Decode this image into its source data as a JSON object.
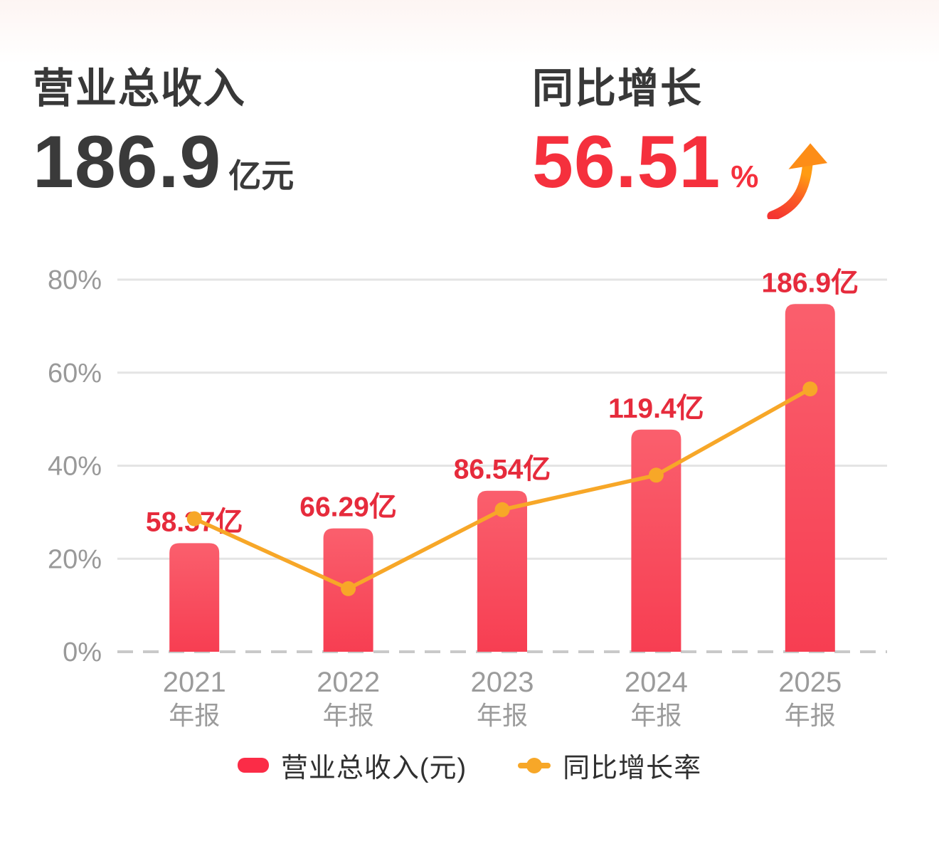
{
  "header": {
    "revenue": {
      "title": "营业总收入",
      "value": "186.9",
      "unit": "亿元"
    },
    "growth": {
      "title": "同比增长",
      "value": "56.51",
      "unit": "%",
      "arrow_icon": "up-trend-arrow"
    }
  },
  "chart_data": {
    "type": "bar",
    "subtype": "combo-bar-line",
    "categories": [
      "2021",
      "2022",
      "2023",
      "2024",
      "2025"
    ],
    "category_sublabel": "年报",
    "series": [
      {
        "name": "营业总收入(元)",
        "type": "bar",
        "unit": "亿",
        "values": [
          58.37,
          66.29,
          86.54,
          119.4,
          186.9
        ],
        "labels": [
          "58.37亿",
          "66.29亿",
          "86.54亿",
          "119.4亿",
          "186.9亿"
        ],
        "hidden_axis_max": 250,
        "color_top": "#fa5f6d",
        "color_bottom": "#f73e52",
        "label_color": "#e62b3c"
      },
      {
        "name": "同比增长率",
        "type": "line",
        "unit": "%",
        "values": [
          28.6,
          13.57,
          30.55,
          37.97,
          56.51
        ],
        "color": "#f7a728"
      }
    ],
    "y_axis": {
      "ticks": [
        "80%",
        "60%",
        "40%",
        "20%",
        "0%"
      ],
      "min": 0,
      "max": 80,
      "unit": "%"
    },
    "grid": true,
    "zero_line_style": "dashed",
    "legend_position": "bottom",
    "legend": [
      {
        "label": "营业总收入(元)",
        "marker": "bar-swatch",
        "color": "#fb2c47"
      },
      {
        "label": "同比增长率",
        "marker": "line-dot",
        "color": "#f7a728"
      }
    ]
  },
  "colors": {
    "accent_red": "#f5303d",
    "bar_red_top": "#fa5f6d",
    "bar_red_bottom": "#f73e52",
    "line_orange": "#f7a728",
    "axis_text_gray": "#999999",
    "gridline_gray": "#e4e4e4",
    "zero_line_gray": "#c9c9c9",
    "title_dark": "#383838"
  }
}
